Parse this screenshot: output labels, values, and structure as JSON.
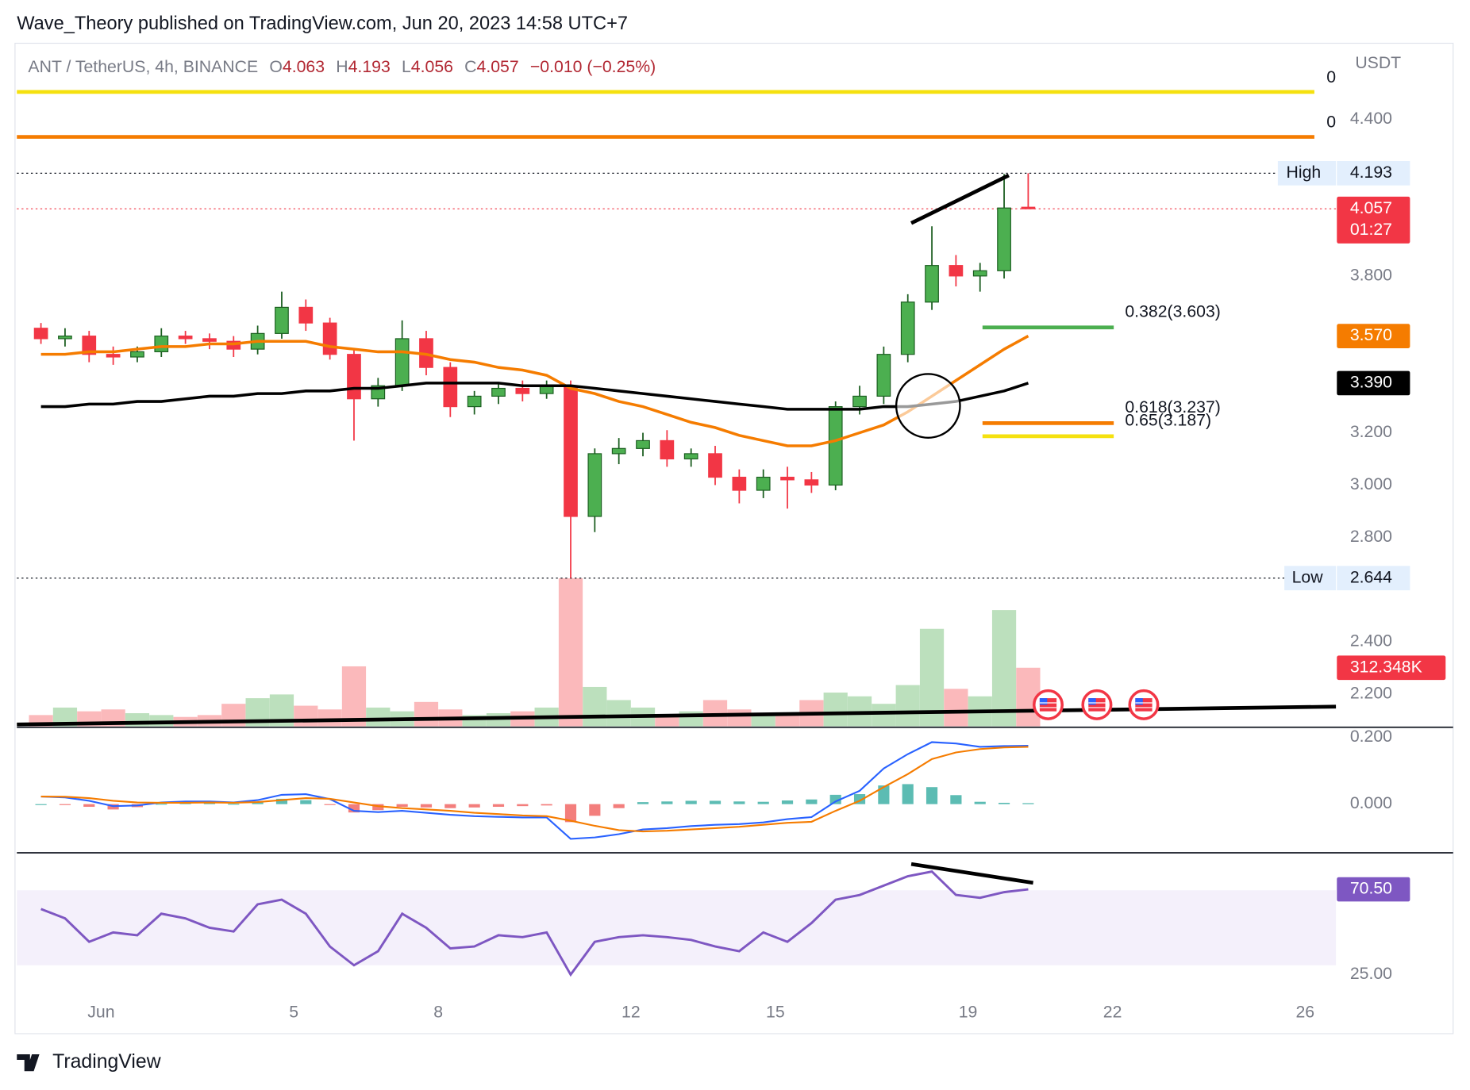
{
  "header": {
    "publisher": "Wave_Theory published on TradingView.com, Jun 20, 2023 14:58 UTC+7",
    "symbol": "ANT / TetherUS, 4h, BINANCE",
    "ohlc_letters": [
      "O",
      "H",
      "L",
      "C"
    ],
    "change": "−0.010 (−0.25%)",
    "currency": "USDT",
    "brand": "TradingView"
  },
  "chart_data": [
    {
      "type": "candlestick",
      "x": [
        -0.25,
        0.25,
        0.75,
        1.25,
        1.75,
        2.25,
        2.75,
        3.25,
        3.75,
        4.25,
        4.75,
        5.25,
        5.75,
        6.25,
        6.75,
        7.25,
        7.75,
        8.25,
        8.75,
        9.25,
        9.75,
        10.25,
        10.75,
        11.25,
        11.75,
        12.25,
        12.75,
        13.25,
        13.75,
        14.25,
        14.75,
        15.25,
        15.75,
        16.25,
        16.75,
        17.25,
        17.75,
        18.25,
        18.75,
        19.25,
        19.75,
        20.25
      ],
      "xlim": [
        -0.75,
        26.64
      ],
      "xticks": [
        {
          "value": 1,
          "label": "Jun"
        },
        5,
        8,
        12,
        15,
        19,
        22,
        26
      ],
      "ylim": [
        2.077,
        4.676
      ],
      "yticks": [
        {
          "value": 2.2,
          "label": "2.200"
        },
        {
          "value": 2.4,
          "label": "2.400"
        },
        {
          "value": 2.8,
          "label": "2.800"
        },
        {
          "value": 3.0,
          "label": "3.000"
        },
        {
          "value": 3.2,
          "label": "3.200"
        },
        {
          "value": 3.8,
          "label": "3.800"
        },
        {
          "value": 4.4,
          "label": "4.400"
        }
      ],
      "open": [
        3.6,
        3.56,
        3.57,
        3.5,
        3.49,
        3.51,
        3.57,
        3.56,
        3.55,
        3.52,
        3.58,
        3.68,
        3.62,
        3.5,
        3.33,
        3.38,
        3.56,
        3.45,
        3.3,
        3.34,
        3.37,
        3.35,
        3.38,
        2.88,
        3.12,
        3.14,
        3.17,
        3.1,
        3.12,
        3.03,
        2.98,
        3.03,
        3.02,
        3.0,
        3.3,
        3.34,
        3.5,
        3.7,
        3.84,
        3.8,
        3.82,
        4.063
      ],
      "high": [
        3.62,
        3.6,
        3.59,
        3.53,
        3.53,
        3.6,
        3.59,
        3.58,
        3.57,
        3.61,
        3.74,
        3.71,
        3.64,
        3.52,
        3.41,
        3.63,
        3.59,
        3.47,
        3.36,
        3.39,
        3.4,
        3.4,
        3.4,
        3.14,
        3.18,
        3.2,
        3.21,
        3.14,
        3.15,
        3.06,
        3.06,
        3.07,
        3.05,
        3.32,
        3.38,
        3.53,
        3.73,
        3.99,
        3.88,
        3.85,
        4.19,
        4.193
      ],
      "low": [
        3.54,
        3.53,
        3.47,
        3.46,
        3.47,
        3.49,
        3.54,
        3.52,
        3.49,
        3.5,
        3.56,
        3.59,
        3.48,
        3.17,
        3.3,
        3.36,
        3.42,
        3.26,
        3.27,
        3.31,
        3.32,
        3.33,
        2.644,
        2.82,
        3.08,
        3.11,
        3.07,
        3.07,
        3.0,
        2.93,
        2.95,
        2.91,
        2.97,
        2.98,
        3.27,
        3.31,
        3.47,
        3.67,
        3.76,
        3.74,
        3.79,
        4.056
      ],
      "close": [
        3.56,
        3.57,
        3.5,
        3.49,
        3.51,
        3.57,
        3.56,
        3.55,
        3.52,
        3.58,
        3.68,
        3.62,
        3.5,
        3.33,
        3.38,
        3.56,
        3.45,
        3.3,
        3.34,
        3.37,
        3.35,
        3.38,
        2.88,
        3.12,
        3.14,
        3.17,
        3.1,
        3.12,
        3.03,
        2.98,
        3.03,
        3.02,
        3.0,
        3.3,
        3.34,
        3.5,
        3.7,
        3.84,
        3.8,
        3.82,
        4.06,
        4.057
      ],
      "up_color": "#4caf50",
      "down_color": "#f23645",
      "lines": [
        {
          "color": "#f57c00",
          "label": "3.570",
          "values": [
            3.5,
            3.5,
            3.51,
            3.51,
            3.52,
            3.53,
            3.53,
            3.54,
            3.54,
            3.55,
            3.55,
            3.55,
            3.53,
            3.52,
            3.51,
            3.51,
            3.5,
            3.48,
            3.47,
            3.45,
            3.44,
            3.42,
            3.37,
            3.35,
            3.32,
            3.3,
            3.27,
            3.24,
            3.22,
            3.19,
            3.17,
            3.15,
            3.15,
            3.17,
            3.2,
            3.23,
            3.28,
            3.34,
            3.4,
            3.46,
            3.52,
            3.57
          ]
        },
        {
          "color": "#000000",
          "label": "3.390",
          "values": [
            3.3,
            3.3,
            3.31,
            3.31,
            3.32,
            3.32,
            3.33,
            3.34,
            3.34,
            3.35,
            3.35,
            3.36,
            3.36,
            3.37,
            3.37,
            3.38,
            3.39,
            3.39,
            3.39,
            3.39,
            3.38,
            3.38,
            3.38,
            3.37,
            3.36,
            3.35,
            3.34,
            3.33,
            3.32,
            3.31,
            3.3,
            3.29,
            3.29,
            3.29,
            3.29,
            3.3,
            3.3,
            3.31,
            3.32,
            3.34,
            3.36,
            3.39
          ]
        }
      ],
      "levels": [
        {
          "label": "0",
          "price": 4.504,
          "color": "#f5e10f"
        },
        {
          "label": "0",
          "price": 4.332,
          "color": "#f57c00"
        }
      ],
      "fib": [
        {
          "label": "0.382(3.603)",
          "price": 3.603,
          "color": "#4caf50"
        },
        {
          "label": "0.618(3.237)",
          "price": 3.237,
          "color": "#f57c00"
        },
        {
          "label": "0.65(3.187)",
          "price": 3.187,
          "color": "#f5e10f"
        }
      ],
      "high_label": "High",
      "low_label": "Low",
      "countdown": "01:27",
      "volume": {
        "ylim": [
          0,
          1000000
        ],
        "label": "312.348K",
        "values": [
          60000,
          100000,
          80000,
          90000,
          70000,
          60000,
          50000,
          60000,
          120000,
          150000,
          170000,
          110000,
          90000,
          320000,
          100000,
          80000,
          130000,
          90000,
          60000,
          70000,
          80000,
          100000,
          790000,
          210000,
          140000,
          100000,
          60000,
          80000,
          140000,
          90000,
          70000,
          60000,
          140000,
          180000,
          160000,
          120000,
          220000,
          520000,
          200000,
          160000,
          620000,
          312348
        ]
      }
    },
    {
      "type": "macd",
      "ylim": [
        -0.146,
        0.225
      ],
      "yticks": [
        {
          "value": 0.2,
          "label": "0.200"
        },
        {
          "value": 0,
          "label": "0.000"
        }
      ],
      "series": [
        {
          "color": "#2962ff",
          "values": [
            0.023,
            0.02,
            0.01,
            -0.006,
            -0.004,
            0.005,
            0.008,
            0.008,
            0.005,
            0.012,
            0.028,
            0.03,
            0.015,
            -0.02,
            -0.024,
            -0.02,
            -0.026,
            -0.032,
            -0.036,
            -0.038,
            -0.04,
            -0.04,
            -0.104,
            -0.1,
            -0.09,
            -0.076,
            -0.072,
            -0.066,
            -0.062,
            -0.06,
            -0.055,
            -0.045,
            -0.039,
            0.008,
            0.04,
            0.107,
            0.15,
            0.186,
            0.182,
            0.172,
            0.174,
            0.175
          ]
        },
        {
          "color": "#f57c00",
          "values": [
            0.023,
            0.022,
            0.018,
            0.01,
            0.005,
            0.004,
            0.004,
            0.005,
            0.004,
            0.006,
            0.012,
            0.018,
            0.016,
            0.005,
            -0.006,
            -0.012,
            -0.016,
            -0.02,
            -0.026,
            -0.03,
            -0.034,
            -0.036,
            -0.05,
            -0.065,
            -0.078,
            -0.082,
            -0.08,
            -0.076,
            -0.072,
            -0.068,
            -0.062,
            -0.056,
            -0.053,
            -0.02,
            0.01,
            0.051,
            0.09,
            0.135,
            0.155,
            0.165,
            0.17,
            0.172
          ]
        }
      ],
      "histogram": {
        "up_color": "#26a69a",
        "down_color": "#ef5350",
        "values": [
          0,
          -0.002,
          -0.008,
          -0.016,
          -0.009,
          0.001,
          0.004,
          0.003,
          0.001,
          0.006,
          0.016,
          0.012,
          -0.001,
          -0.025,
          -0.018,
          -0.008,
          -0.01,
          -0.012,
          -0.01,
          -0.008,
          -0.006,
          -0.004,
          -0.054,
          -0.035,
          -0.012,
          0.006,
          0.008,
          0.01,
          0.01,
          0.008,
          0.007,
          0.011,
          0.014,
          0.028,
          0.03,
          0.056,
          0.06,
          0.051,
          0.027,
          0.007,
          0.004,
          0.003
        ]
      }
    },
    {
      "type": "rsi",
      "ylim": [
        12.5,
        89
      ],
      "yticks": [
        {
          "value": 25,
          "label": "25.00"
        }
      ],
      "band": [
        30,
        70
      ],
      "color": "#7e57c2",
      "label": "70.50",
      "values": [
        60,
        55,
        42.5,
        47.5,
        46,
        57.5,
        55,
        50,
        48,
        62.5,
        65,
        57.5,
        40,
        30,
        37.5,
        57.5,
        50,
        39,
        40,
        46,
        45,
        47.5,
        25,
        42.5,
        45,
        46,
        45,
        43.5,
        40,
        37.5,
        47.5,
        42.5,
        52.5,
        65,
        67.5,
        72.5,
        77.5,
        80,
        67.5,
        66,
        69,
        70.5
      ]
    }
  ]
}
